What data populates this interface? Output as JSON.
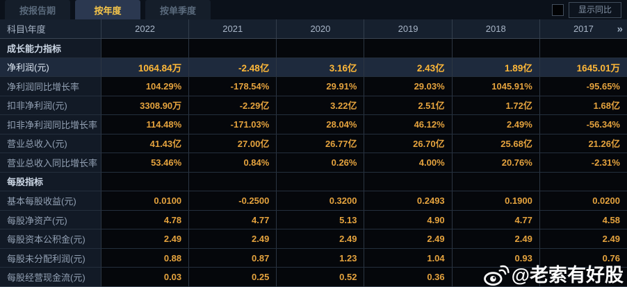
{
  "tabs": [
    {
      "id": "by-report-period",
      "label": "按报告期",
      "active": false
    },
    {
      "id": "by-year",
      "label": "按年度",
      "active": true
    },
    {
      "id": "by-quarter",
      "label": "按单季度",
      "active": false
    }
  ],
  "controls": {
    "show_yoy_label": "显示同比",
    "checkbox_checked": false
  },
  "table": {
    "corner_header": "科目\\年度",
    "years": [
      "2022",
      "2021",
      "2020",
      "2019",
      "2018",
      "2017"
    ],
    "more_icon": "»",
    "rows": [
      {
        "type": "section",
        "label": "成长能力指标",
        "values": [
          "",
          "",
          "",
          "",
          "",
          ""
        ]
      },
      {
        "type": "data",
        "highlight": true,
        "label": "净利润(元)",
        "values": [
          "1064.84万",
          "-2.48亿",
          "3.16亿",
          "2.43亿",
          "1.89亿",
          "1645.01万"
        ]
      },
      {
        "type": "data",
        "label": "净利润同比增长率",
        "values": [
          "104.29%",
          "-178.54%",
          "29.91%",
          "29.03%",
          "1045.91%",
          "-95.65%"
        ]
      },
      {
        "type": "data",
        "label": "扣非净利润(元)",
        "values": [
          "3308.90万",
          "-2.29亿",
          "3.22亿",
          "2.51亿",
          "1.72亿",
          "1.68亿"
        ]
      },
      {
        "type": "data",
        "label": "扣非净利润同比增长率",
        "values": [
          "114.48%",
          "-171.03%",
          "28.04%",
          "46.12%",
          "2.49%",
          "-56.34%"
        ]
      },
      {
        "type": "data",
        "label": "营业总收入(元)",
        "values": [
          "41.43亿",
          "27.00亿",
          "26.77亿",
          "26.70亿",
          "25.68亿",
          "21.26亿"
        ]
      },
      {
        "type": "data",
        "label": "营业总收入同比增长率",
        "values": [
          "53.46%",
          "0.84%",
          "0.26%",
          "4.00%",
          "20.76%",
          "-2.31%"
        ]
      },
      {
        "type": "section",
        "label": "每股指标",
        "values": [
          "",
          "",
          "",
          "",
          "",
          ""
        ]
      },
      {
        "type": "data",
        "label": "基本每股收益(元)",
        "values": [
          "0.0100",
          "-0.2500",
          "0.3200",
          "0.2493",
          "0.1900",
          "0.0200"
        ]
      },
      {
        "type": "data",
        "label": "每股净资产(元)",
        "values": [
          "4.78",
          "4.77",
          "5.13",
          "4.90",
          "4.77",
          "4.58"
        ]
      },
      {
        "type": "data",
        "label": "每股资本公积金(元)",
        "values": [
          "2.49",
          "2.49",
          "2.49",
          "2.49",
          "2.49",
          "2.49"
        ]
      },
      {
        "type": "data",
        "label": "每股未分配利润(元)",
        "values": [
          "0.88",
          "0.87",
          "1.23",
          "1.04",
          "0.93",
          "0.76"
        ]
      },
      {
        "type": "data",
        "label": "每股经营现金流(元)",
        "values": [
          "0.03",
          "0.25",
          "0.52",
          "0.36",
          "",
          ""
        ]
      }
    ]
  },
  "watermark": {
    "icon": "weibo-icon",
    "text": "@老索有好股"
  },
  "colors": {
    "value_gold": "#e5a33e",
    "highlight_gold": "#ffb838",
    "active_tab_gold": "#f7c64a",
    "highlight_row_bg": "#1e2a3d",
    "label_col_bg": "#121a26",
    "data_cell_bg": "#05070b",
    "header_bg": "#16202e"
  }
}
